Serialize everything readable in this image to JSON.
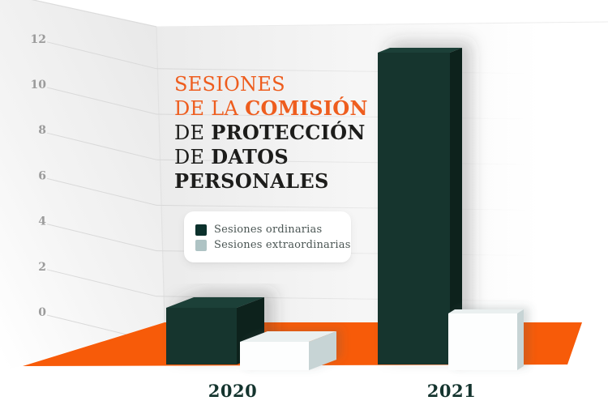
{
  "colors": {
    "floor_orange": "#F75B09",
    "title_orange": "#EE5D1E",
    "title_dark": "#1D1D1B",
    "axis_gray": "#9B9B9B",
    "year_label_dark_teal": "#14342E",
    "legend_text": "#4A5553",
    "wall_gray": "#EDEDED"
  },
  "title": {
    "l1": "SESIONES",
    "l2a": "DE LA ",
    "l2b": "COMISIÓN",
    "l3a": "DE ",
    "l3b": "PROTECCIÓN",
    "l4a": "DE ",
    "l4b": "DATOS",
    "l5": "PERSONALES"
  },
  "legend": {
    "items": [
      {
        "label": "Sesiones ordinarias",
        "color": "#0C312C"
      },
      {
        "label": "Sesiones extraordinarias",
        "color": "#AEC3C4"
      }
    ]
  },
  "chart_data": {
    "type": "bar",
    "style": "3d-perspective",
    "title": "Sesiones de la Comisión de Protección de Datos Personales",
    "categories": [
      "2020",
      "2021"
    ],
    "series": [
      {
        "name": "Sesiones ordinarias",
        "values": [
          2,
          11
        ],
        "colors": {
          "front": "#17352F",
          "side": "#0A221F",
          "top": "#1F4039"
        }
      },
      {
        "name": "Sesiones extraordinarias",
        "values": [
          1,
          2
        ],
        "colors": {
          "front": "#FDFEFE",
          "side": "#C7D4D5",
          "top": "#EAF0F0"
        }
      }
    ],
    "y_ticks": [
      0,
      2,
      4,
      6,
      8,
      10,
      12
    ],
    "ylim": [
      0,
      12
    ],
    "xlabel": "",
    "ylabel": "",
    "grid": true,
    "legend_position": "center-left-card"
  }
}
